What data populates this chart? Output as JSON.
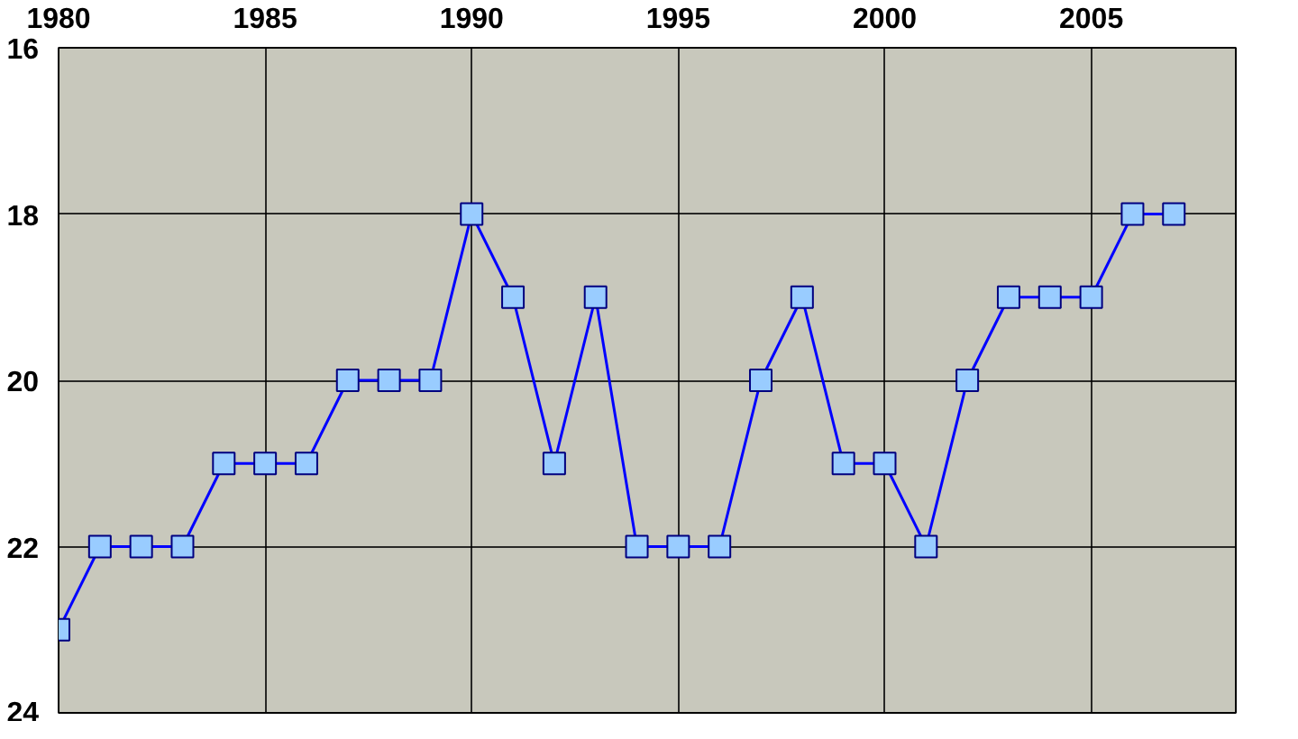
{
  "chart_data": {
    "type": "line",
    "x": [
      1980,
      1981,
      1982,
      1983,
      1984,
      1985,
      1986,
      1987,
      1988,
      1989,
      1990,
      1991,
      1992,
      1993,
      1994,
      1995,
      1996,
      1997,
      1998,
      1999,
      2000,
      2001,
      2002,
      2003,
      2004,
      2005,
      2006,
      2007
    ],
    "series": [
      {
        "color": "#0000ff",
        "values": [
          23,
          22,
          22,
          22,
          21,
          21,
          21,
          20,
          20,
          20,
          18,
          19,
          21,
          19,
          22,
          22,
          22,
          20,
          19,
          21,
          21,
          22,
          20,
          19,
          19,
          19,
          18,
          18
        ]
      }
    ],
    "xlim": [
      1980,
      2008.5
    ],
    "xticks": [
      1980,
      1985,
      1990,
      1995,
      2000,
      2005
    ],
    "ylim": [
      24,
      16
    ],
    "yticks": [
      16,
      18,
      20,
      22,
      24
    ],
    "grid": true,
    "marker": "square",
    "line_style": "solid"
  }
}
